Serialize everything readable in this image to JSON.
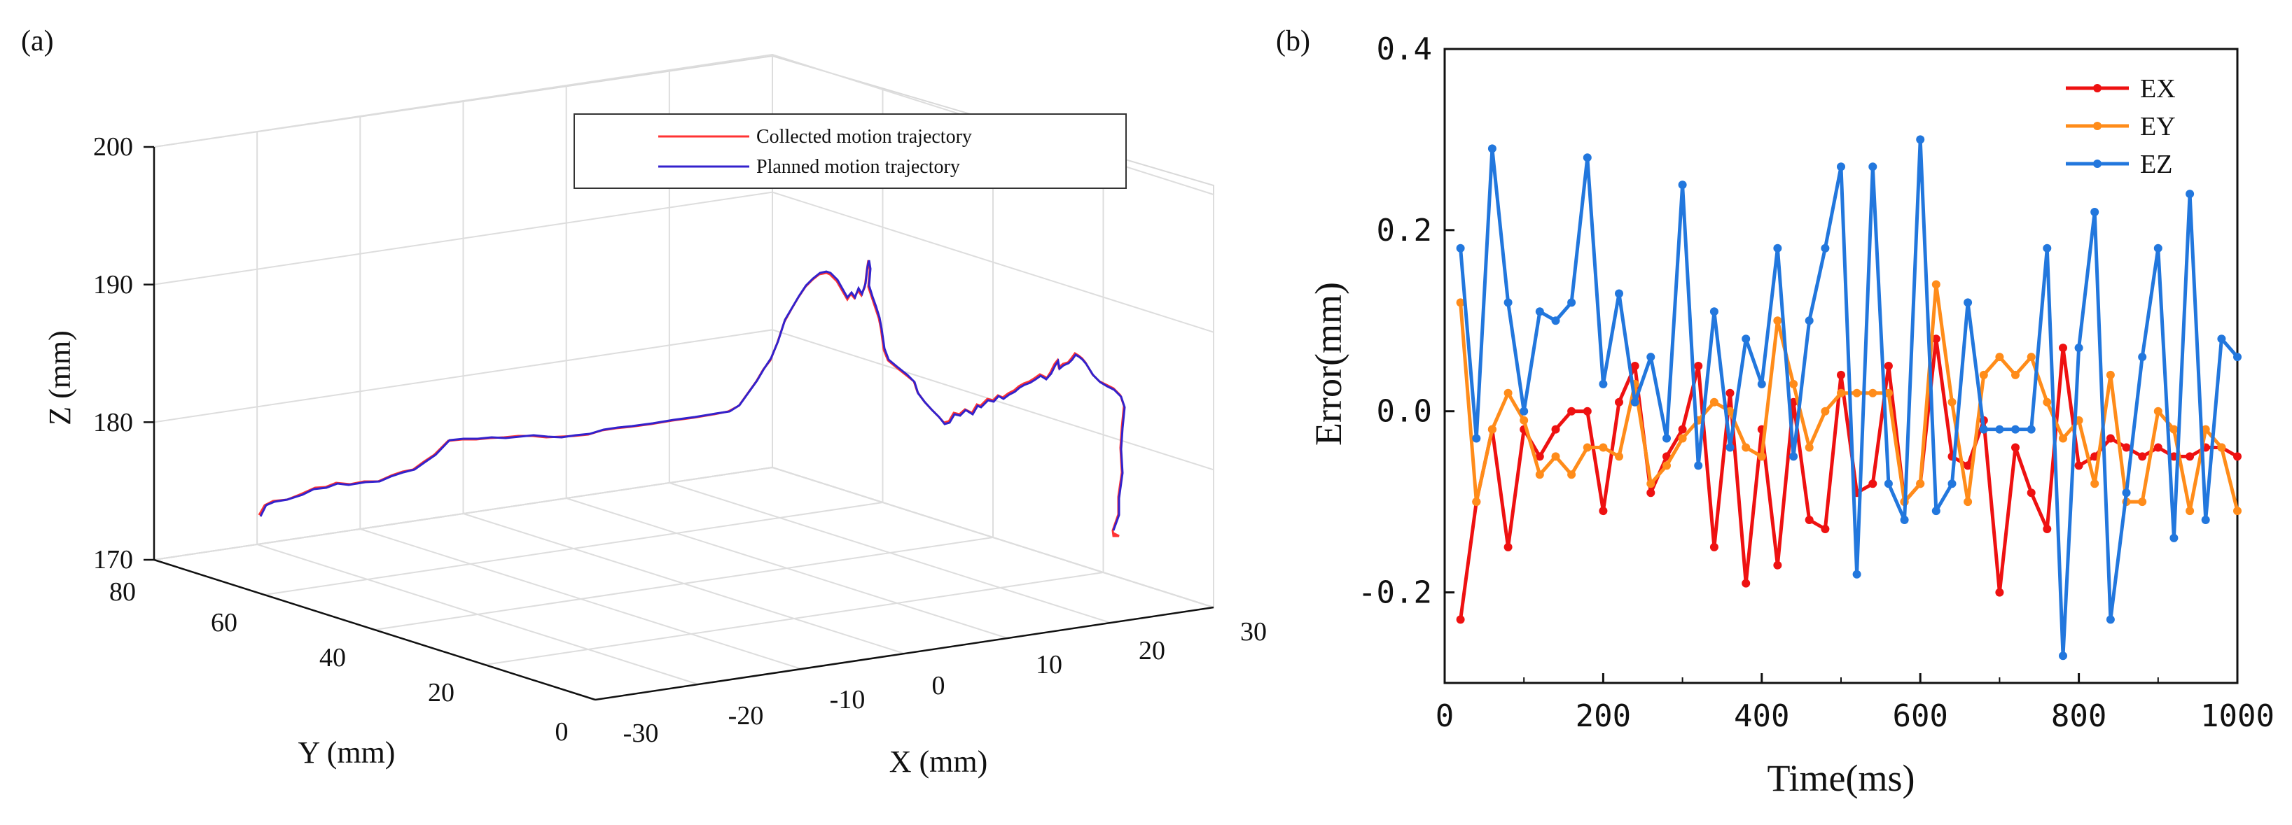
{
  "chart_data": [
    {
      "panel_label": "(a)",
      "type": "line3d",
      "xlabel": "X (mm)",
      "ylabel": "Y (mm)",
      "zlabel": "Z (mm)",
      "x_ticks": [
        "-30",
        "-20",
        "-10",
        "0",
        "10",
        "20",
        "30"
      ],
      "y_ticks": [
        "0",
        "20",
        "40",
        "60",
        "80"
      ],
      "z_ticks": [
        "170",
        "180",
        "190",
        "200"
      ],
      "xlim": [
        -30,
        30
      ],
      "ylim": [
        0,
        80
      ],
      "zlim": [
        170,
        200
      ],
      "grid": true,
      "legend_position": "top",
      "series": [
        {
          "name": "Collected motion trajectory",
          "color": "#ff3333"
        },
        {
          "name": "Planned motion trajectory",
          "color": "#3322cc"
        }
      ]
    },
    {
      "panel_label": "(b)",
      "type": "line",
      "xlabel": "Time(ms)",
      "ylabel": "Error(mm)",
      "x_ticks": [
        "0",
        "200",
        "400",
        "600",
        "800",
        "1000"
      ],
      "y_ticks": [
        "-0.2",
        "0.0",
        "0.2",
        "0.4"
      ],
      "xlim": [
        0,
        1000
      ],
      "ylim": [
        -0.3,
        0.4
      ],
      "legend_position": "top-right",
      "x": [
        20,
        40,
        60,
        80,
        100,
        120,
        140,
        160,
        180,
        200,
        220,
        240,
        260,
        280,
        300,
        320,
        340,
        360,
        380,
        400,
        420,
        440,
        460,
        480,
        500,
        520,
        540,
        560,
        580,
        600,
        620,
        640,
        660,
        680,
        700,
        720,
        740,
        760,
        780,
        800,
        820,
        840,
        860,
        880,
        900,
        920,
        940,
        960,
        980,
        1000
      ],
      "series": [
        {
          "name": "EX",
          "color": "#ee1111",
          "values": [
            -0.23,
            -0.1,
            -0.02,
            -0.15,
            -0.02,
            -0.05,
            -0.02,
            0.0,
            0.0,
            -0.11,
            0.01,
            0.05,
            -0.09,
            -0.05,
            -0.02,
            0.05,
            -0.15,
            0.02,
            -0.19,
            -0.02,
            -0.17,
            0.01,
            -0.12,
            -0.13,
            0.04,
            -0.09,
            -0.08,
            0.05,
            -0.1,
            -0.08,
            0.08,
            -0.05,
            -0.06,
            -0.01,
            -0.2,
            -0.04,
            -0.09,
            -0.13,
            0.07,
            -0.06,
            -0.05,
            -0.03,
            -0.04,
            -0.05,
            -0.04,
            -0.05,
            -0.05,
            -0.04,
            -0.04,
            -0.05
          ]
        },
        {
          "name": "EY",
          "color": "#ff8c1a",
          "values": [
            0.12,
            -0.1,
            -0.02,
            0.02,
            -0.01,
            -0.07,
            -0.05,
            -0.07,
            -0.04,
            -0.04,
            -0.05,
            0.03,
            -0.08,
            -0.06,
            -0.03,
            -0.01,
            0.01,
            0.0,
            -0.04,
            -0.05,
            0.1,
            0.03,
            -0.04,
            0.0,
            0.02,
            0.02,
            0.02,
            0.02,
            -0.1,
            -0.08,
            0.14,
            0.01,
            -0.1,
            0.04,
            0.06,
            0.04,
            0.06,
            0.01,
            -0.03,
            -0.01,
            -0.08,
            0.04,
            -0.1,
            -0.1,
            0.0,
            -0.02,
            -0.11,
            -0.02,
            -0.04,
            -0.11
          ]
        },
        {
          "name": "EZ",
          "color": "#2277dd",
          "values": [
            0.18,
            -0.03,
            0.29,
            0.12,
            0.0,
            0.11,
            0.1,
            0.12,
            0.28,
            0.03,
            0.13,
            0.01,
            0.06,
            -0.03,
            0.25,
            -0.06,
            0.11,
            -0.04,
            0.08,
            0.03,
            0.18,
            -0.05,
            0.1,
            0.18,
            0.27,
            -0.18,
            0.27,
            -0.08,
            -0.12,
            0.3,
            -0.11,
            -0.08,
            0.12,
            -0.02,
            -0.02,
            -0.02,
            -0.02,
            0.18,
            -0.27,
            0.07,
            0.22,
            -0.23,
            -0.09,
            0.06,
            0.18,
            -0.14,
            0.24,
            -0.12,
            0.08,
            0.06
          ]
        }
      ]
    }
  ]
}
